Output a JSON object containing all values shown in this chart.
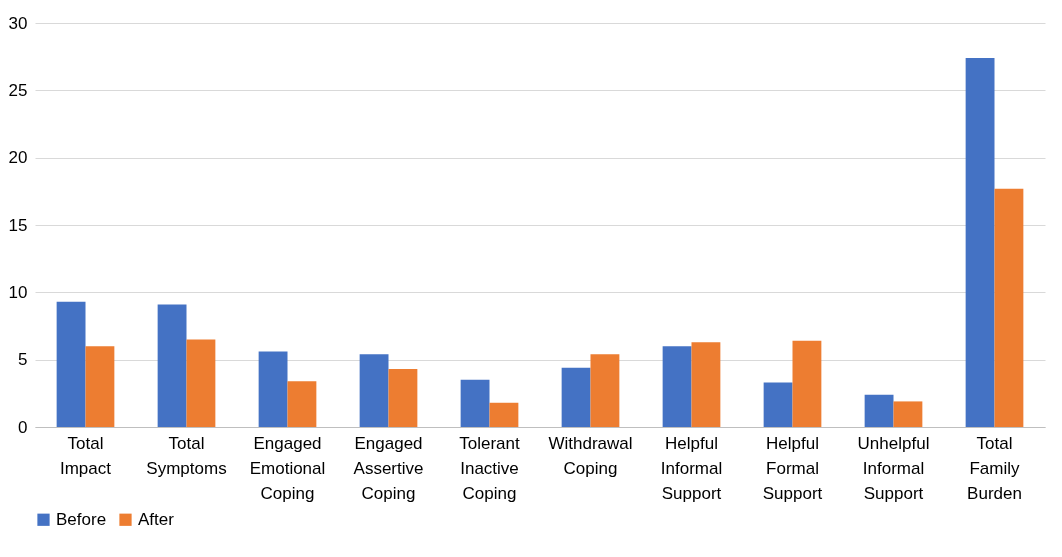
{
  "chart_data": {
    "type": "bar",
    "categories": [
      "Total Impact",
      "Total Symptoms",
      "Engaged Emotional Coping",
      "Engaged Assertive Coping",
      "Tolerant Inactive Coping",
      "Withdrawal Coping",
      "Helpful Informal Support",
      "Helpful Formal Support",
      "Unhelpful Informal Support",
      "Total Family Burden"
    ],
    "series": [
      {
        "name": "Before",
        "color": "#4472c4",
        "values": [
          9.3,
          9.1,
          5.6,
          5.4,
          3.5,
          4.4,
          6.0,
          3.3,
          2.4,
          27.4
        ]
      },
      {
        "name": "After",
        "color": "#ed7d31",
        "values": [
          6.0,
          6.5,
          3.4,
          4.3,
          1.8,
          5.4,
          6.3,
          6.4,
          1.9,
          17.7
        ]
      }
    ],
    "ylim": [
      0,
      30
    ],
    "yticks": [
      0,
      5,
      10,
      15,
      20,
      25,
      30
    ],
    "grid": "y",
    "legend": "bottom"
  }
}
